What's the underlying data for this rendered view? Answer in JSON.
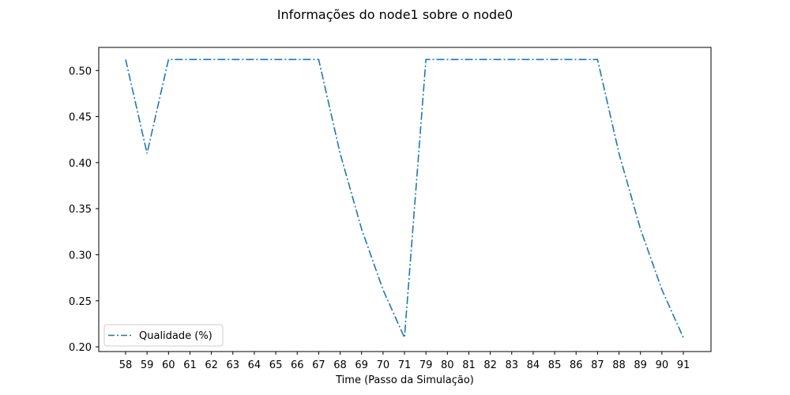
{
  "chart_data": {
    "type": "line",
    "title": "Informações do node1 sobre o node0",
    "xlabel": "Time (Passo da Simulação)",
    "ylabel": "",
    "categories": [
      "58",
      "59",
      "60",
      "61",
      "62",
      "63",
      "64",
      "65",
      "66",
      "67",
      "68",
      "69",
      "70",
      "71",
      "79",
      "80",
      "81",
      "82",
      "83",
      "84",
      "85",
      "86",
      "87",
      "88",
      "89",
      "90",
      "91"
    ],
    "series": [
      {
        "name": "Qualidade (%)",
        "color": "#1f77b4",
        "values": [
          0.512,
          0.41,
          0.512,
          0.512,
          0.512,
          0.512,
          0.512,
          0.512,
          0.512,
          0.512,
          0.41,
          0.328,
          0.262,
          0.21,
          0.512,
          0.512,
          0.512,
          0.512,
          0.512,
          0.512,
          0.512,
          0.512,
          0.512,
          0.41,
          0.328,
          0.262,
          0.21
        ]
      }
    ],
    "ylim": [
      0.1949,
      0.5251
    ],
    "yticks": [
      "0.20",
      "0.25",
      "0.30",
      "0.35",
      "0.40",
      "0.45",
      "0.50"
    ],
    "grid": false,
    "legend_position": "lower-left"
  }
}
